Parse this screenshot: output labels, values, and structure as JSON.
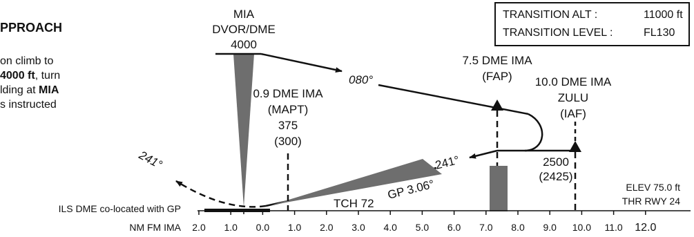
{
  "title_partial": "PPROACH",
  "instructions": {
    "line1_a": "on climb to",
    "line2_bold": "4000 ft",
    "line2_b": ", turn",
    "line3_a": "lding at ",
    "line3_bold": "MIA",
    "line4": "s instructed"
  },
  "transition": {
    "alt_label": "TRANSITION ALT :",
    "alt_value": "11000 ft",
    "level_label": "TRANSITION LEVEL :",
    "level_value": "FL130"
  },
  "navaid": {
    "name": "MIA",
    "type": "DVOR/DME",
    "altitude": "4000"
  },
  "outbound_course": "080°",
  "inbound_course": "241°",
  "missed_course": "241°",
  "fap": {
    "name": "7.5 DME IMA",
    "label": "(FAP)"
  },
  "iaf": {
    "name": "10.0 DME IMA",
    "fix": "ZULU",
    "label": "(IAF)",
    "altitude": "2500",
    "height": "(2425)"
  },
  "mapt": {
    "name": "0.9 DME IMA",
    "label": "(MAPT)",
    "altitude": "375",
    "height": "(300)"
  },
  "glidepath": "GP 3.06°",
  "tch": "TCH 72",
  "elev": "ELEV 75.0 ft",
  "thr": "THR RWY 24",
  "dme_note": "ILS DME co-located with GP",
  "scale_label": "NM FM IMA",
  "scale_ticks": [
    "2.0",
    "1.0",
    "0.0",
    "1.0",
    "2.0",
    "3.0",
    "4.0",
    "5.0",
    "6.0",
    "7.0",
    "8.0",
    "9.0",
    "10.0",
    "11.0",
    "12.0"
  ],
  "colors": {
    "ink": "#111111",
    "shade": "#6e6e6e"
  }
}
